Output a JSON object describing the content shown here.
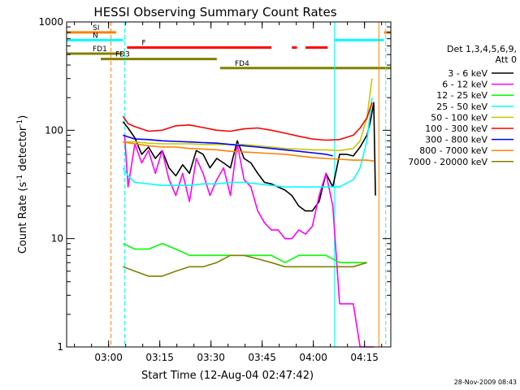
{
  "chart_data": {
    "type": "line",
    "title": "HESSI Observing Summary Count Rates",
    "xlabel": "Start Time (12-Aug-04 02:47:42)",
    "ylabel_main": "Count Rate (s",
    "ylabel_sup1": "-1",
    "ylabel_mid": " detector",
    "ylabel_sup2": "-1",
    "ylabel_end": ")",
    "x_unit": "minutes after 02:47:42",
    "xlim": [
      0,
      95
    ],
    "ylim": [
      1,
      1000
    ],
    "yscale": "log",
    "x_ticks": [
      {
        "value": 12.3,
        "label": "03:00"
      },
      {
        "value": 27.3,
        "label": "03:15"
      },
      {
        "value": 42.3,
        "label": "03:30"
      },
      {
        "value": 57.3,
        "label": "03:45"
      },
      {
        "value": 72.3,
        "label": "04:00"
      },
      {
        "value": 87.3,
        "label": "04:15"
      }
    ],
    "y_ticks": [
      {
        "value": 1,
        "label": "1"
      },
      {
        "value": 10,
        "label": "10"
      },
      {
        "value": 100,
        "label": "100"
      },
      {
        "value": 1000,
        "label": "1000"
      }
    ],
    "legend_title": [
      "Det 1,3,4,5,6,9,",
      "Att 0"
    ],
    "legend_placement": "right",
    "timestamp": "28-Nov-2009 08:43",
    "flags": [
      {
        "label": "SI",
        "color": "#ff8000",
        "y": 800,
        "segments": [
          [
            0,
            14.5
          ],
          [
            93,
            95
          ]
        ]
      },
      {
        "label": "N",
        "color": "#00ffff",
        "y": 680,
        "segments": [
          [
            0,
            16.5
          ],
          [
            78.5,
            93
          ]
        ]
      },
      {
        "label": "F",
        "color": "#ff0000",
        "y": 580,
        "segments": [
          [
            17.7,
            60
          ],
          [
            66,
            67.5
          ],
          [
            70,
            76.5
          ]
        ]
      },
      {
        "label": "FD1",
        "color": "#808000",
        "y": 510,
        "segments": [
          [
            0,
            16.5
          ]
        ]
      },
      {
        "label": "FD3",
        "color": "#808000",
        "y": 455,
        "segments": [
          [
            10,
            44
          ]
        ]
      },
      {
        "label": "FD4",
        "color": "#808000",
        "y": 375,
        "segments": [
          [
            45,
            95
          ]
        ]
      }
    ],
    "vlines": [
      {
        "x": 13,
        "color": "#ff8000",
        "dash": true
      },
      {
        "x": 17,
        "color": "#00ffff",
        "dash": true
      },
      {
        "x": 78.5,
        "color": "#00ffff",
        "dash": false
      },
      {
        "x": 91.5,
        "color": "#ff8000",
        "dash": false
      },
      {
        "x": 93.5,
        "color": "#00ffff",
        "dash": true
      }
    ],
    "series": [
      {
        "name": "3 - 6 keV",
        "color": "#000000",
        "x": [
          16.5,
          18,
          20,
          22,
          24,
          26,
          28,
          30,
          32,
          34,
          36,
          38,
          40,
          42,
          44,
          46,
          48,
          50,
          52,
          54,
          56,
          58,
          60,
          62,
          64,
          66,
          68,
          70,
          72,
          74,
          76,
          78,
          80,
          82,
          84,
          86,
          88,
          89,
          90,
          90.5
        ],
        "values": [
          120,
          105,
          85,
          60,
          70,
          55,
          65,
          45,
          38,
          48,
          40,
          65,
          60,
          45,
          55,
          50,
          45,
          80,
          55,
          50,
          40,
          33,
          32,
          30,
          28,
          25,
          20,
          18,
          18,
          22,
          40,
          30,
          60,
          60,
          58,
          70,
          90,
          120,
          180,
          25
        ]
      },
      {
        "name": "6 - 12 keV",
        "color": "#ff00ff",
        "x": [
          17,
          18,
          20,
          22,
          24,
          26,
          28,
          30,
          32,
          34,
          36,
          38,
          40,
          42,
          44,
          46,
          48,
          50,
          52,
          54,
          56,
          58,
          60,
          62,
          64,
          66,
          68,
          70,
          72,
          74,
          76,
          78,
          80,
          82,
          84,
          86,
          88,
          90
        ],
        "values": [
          90,
          30,
          75,
          50,
          65,
          40,
          65,
          35,
          25,
          40,
          22,
          55,
          40,
          25,
          35,
          45,
          25,
          75,
          35,
          30,
          18,
          14,
          12,
          12,
          10,
          10,
          12,
          11,
          13,
          25,
          40,
          20,
          2.5,
          2.5,
          2.5,
          1,
          1,
          1
        ]
      },
      {
        "name": "12 - 25 keV",
        "color": "#00ff00",
        "x": [
          16.5,
          20,
          24,
          28,
          32,
          36,
          40,
          44,
          48,
          52,
          56,
          60,
          64,
          68,
          72,
          76,
          80,
          84,
          88
        ],
        "values": [
          9,
          8,
          8,
          9,
          8,
          7,
          7,
          7,
          7,
          7,
          7,
          7,
          6,
          7,
          7,
          7,
          6,
          6,
          6
        ]
      },
      {
        "name": "25 - 50 keV",
        "color": "#00ffff",
        "x": [
          16.5,
          18,
          20,
          24,
          28,
          32,
          36,
          40,
          44,
          48,
          52,
          56,
          60,
          64,
          68,
          72,
          76,
          80,
          84,
          86,
          88,
          89.5
        ],
        "values": [
          45,
          38,
          33,
          32,
          31,
          31,
          31,
          32,
          32,
          33,
          33,
          32,
          31,
          30,
          30,
          30,
          30,
          30,
          35,
          45,
          80,
          200
        ]
      },
      {
        "name": "50 - 100 keV",
        "color": "#c8c800",
        "x": [
          16.5,
          20,
          24,
          28,
          32,
          36,
          40,
          44,
          48,
          52,
          56,
          60,
          64,
          68,
          72,
          76,
          80,
          84,
          86,
          88,
          89.5
        ],
        "values": [
          78,
          78,
          76,
          75,
          75,
          75,
          74,
          74,
          74,
          74,
          72,
          70,
          68,
          67,
          66,
          66,
          65,
          68,
          80,
          130,
          300
        ]
      },
      {
        "name": "100 - 300 keV",
        "color": "#ff0000",
        "x": [
          16.5,
          18,
          20,
          24,
          28,
          32,
          36,
          40,
          44,
          48,
          52,
          56,
          60,
          64,
          68,
          72,
          76,
          80,
          84,
          86,
          88,
          89.5
        ],
        "values": [
          135,
          115,
          108,
          98,
          100,
          110,
          112,
          106,
          100,
          98,
          103,
          105,
          100,
          94,
          88,
          83,
          81,
          82,
          90,
          105,
          130,
          180
        ]
      },
      {
        "name": "300 - 800 keV",
        "color": "#0000ff",
        "x": [
          16.5,
          20,
          24,
          28,
          32,
          36,
          40,
          44,
          48,
          52,
          56,
          60,
          64,
          68,
          72,
          76,
          78
        ],
        "values": [
          90,
          83,
          82,
          80,
          79,
          78,
          77,
          76,
          74,
          72,
          70,
          68,
          66,
          64,
          62,
          60,
          58
        ]
      },
      {
        "name": "800 - 7000 keV",
        "color": "#ff8000",
        "x": [
          16.5,
          20,
          24,
          28,
          32,
          36,
          40,
          44,
          48,
          52,
          56,
          60,
          64,
          68,
          72,
          76,
          80,
          84,
          88,
          90
        ],
        "values": [
          78,
          75,
          72,
          70,
          70,
          68,
          67,
          66,
          64,
          63,
          62,
          61,
          60,
          58,
          56,
          55,
          54,
          53,
          53,
          52
        ]
      },
      {
        "name": "7000 - 20000 keV",
        "color": "#808000",
        "x": [
          16.5,
          20,
          24,
          28,
          32,
          36,
          40,
          44,
          48,
          52,
          56,
          60,
          64,
          68,
          72,
          76,
          80,
          84,
          88
        ],
        "values": [
          5.5,
          5,
          4.5,
          4.5,
          5,
          5.5,
          5.5,
          6,
          7,
          7,
          6.5,
          6,
          5.5,
          5.5,
          5.5,
          5.5,
          5.5,
          5.5,
          6
        ]
      }
    ]
  }
}
